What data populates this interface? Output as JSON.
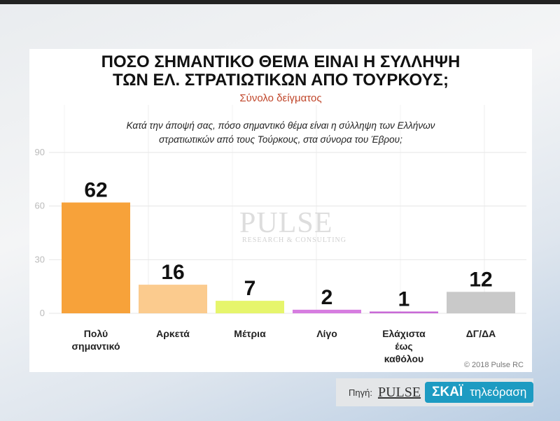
{
  "chart_data": {
    "type": "bar",
    "title": "ΠΟΣΟ ΣΗΜΑΝΤΙΚΟ ΘΕΜΑ ΕΙΝΑΙ Η ΣΥΛΛΗΨΗ ΤΩΝ ΕΛ. ΣΤΡΑΤΙΩΤΙΚΩΝ ΑΠΟ ΤΟΥΡΚΟΥΣ;",
    "title_lines": [
      "ΠΟΣΟ ΣΗΜΑΝΤΙΚΟ ΘΕΜΑ ΕΙΝΑΙ Η ΣΥΛΛΗΨΗ",
      "ΤΩΝ ΕΛ. ΣΤΡΑΤΙΩΤΙΚΩΝ ΑΠΟ ΤΟΥΡΚΟΥΣ;"
    ],
    "subtitle": "Σύνολο δείγματος",
    "question_lines": [
      "Κατά την άποψή σας, πόσο σημαντικό θέμα είναι η σύλληψη των Ελλήνων",
      "στρατιωτικών από τους Τούρκους, στα σύνορα του Έβρου;"
    ],
    "categories": [
      [
        "Πολύ",
        "σημαντικό"
      ],
      [
        "Αρκετά"
      ],
      [
        "Μέτρια"
      ],
      [
        "Λίγο"
      ],
      [
        "Ελάχιστα",
        "έως",
        "καθόλου"
      ],
      [
        "ΔΓ/ΔΑ"
      ]
    ],
    "values": [
      62,
      16,
      7,
      2,
      1,
      12
    ],
    "colors": [
      "#f7a23a",
      "#fbcb8e",
      "#e6f56c",
      "#d67de0",
      "#c86ad6",
      "#c9c9c9"
    ],
    "yticks": [
      0,
      30,
      60,
      90
    ],
    "ylim": [
      0,
      90
    ],
    "xlabel": "",
    "ylabel": "",
    "grid": true
  },
  "watermark": "PULSE",
  "watermark_sub": "RESEARCH & CONSULTING",
  "copyright": "© 2018 Pulse RC",
  "source": {
    "label": "Πηγή:",
    "pulse": "PULSE",
    "skai": "ΣΚΑΪ",
    "skai_tv": "τηλεόραση"
  }
}
